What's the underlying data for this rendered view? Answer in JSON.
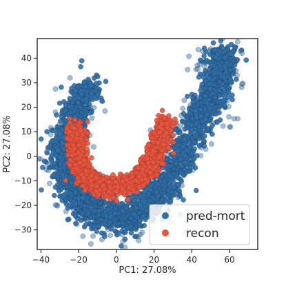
{
  "chart_data": {
    "type": "scatter",
    "title": "",
    "xlabel": "PC1: 27.08%",
    "ylabel": "PC2: 27.08%",
    "xlim": [
      -42,
      75
    ],
    "ylim": [
      -38,
      48
    ],
    "xticks": [
      -40,
      -20,
      0,
      20,
      40,
      60
    ],
    "yticks": [
      -30,
      -20,
      -10,
      0,
      10,
      20,
      30,
      40
    ],
    "grid": false,
    "legend_position": "bottom-right",
    "series": [
      {
        "name": "pred-mort",
        "color": "#2f6fa8",
        "edge_color": "#1a2a3a",
        "shape": "U-shaped band",
        "centerline": [
          [
            -14,
            29
          ],
          [
            -24,
            12
          ],
          [
            -28,
            -2
          ],
          [
            -20,
            -16
          ],
          [
            -8,
            -24
          ],
          [
            8,
            -24
          ],
          [
            22,
            -16
          ],
          [
            34,
            0
          ],
          [
            46,
            18
          ],
          [
            54,
            32
          ],
          [
            56,
            40
          ]
        ],
        "approx_extent": {
          "x": [
            -39,
            71
          ],
          "y": [
            -37,
            45
          ]
        }
      },
      {
        "name": "recon",
        "color": "#e8553e",
        "edge_color": "#6a2418",
        "shape": "U-shaped band",
        "centerline": [
          [
            -21,
            12
          ],
          [
            -21,
            2
          ],
          [
            -16,
            -8
          ],
          [
            -6,
            -12
          ],
          [
            6,
            -11
          ],
          [
            16,
            -6
          ],
          [
            22,
            4
          ],
          [
            26,
            14
          ]
        ],
        "approx_extent": {
          "x": [
            -24,
            33
          ],
          "y": [
            -16,
            20
          ]
        }
      }
    ]
  }
}
